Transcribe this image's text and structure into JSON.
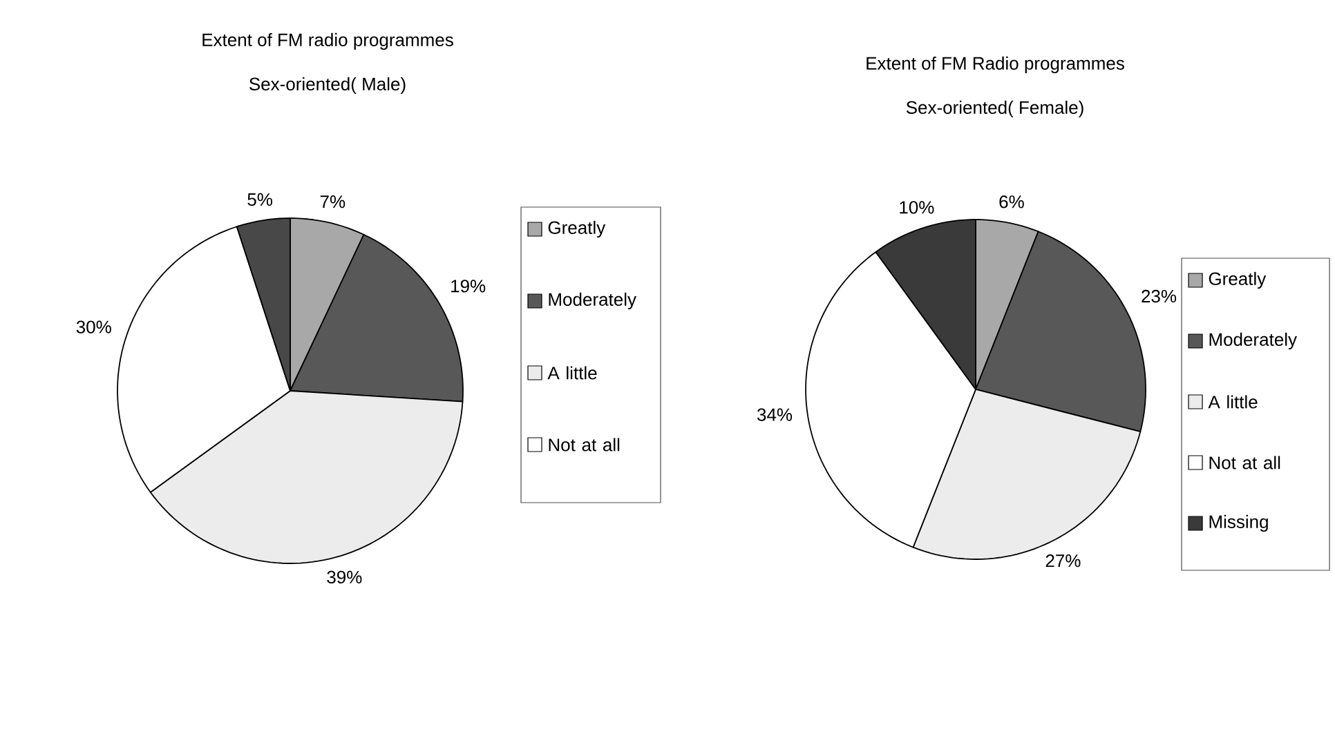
{
  "chart_data": [
    {
      "type": "pie",
      "title": "Extent of FM radio programmes",
      "subtitle": "Sex-oriented( Male)",
      "categories": [
        "Greatly",
        "Moderately",
        "A little",
        "Not at all",
        null
      ],
      "values": [
        7,
        19,
        39,
        30,
        5
      ],
      "colors": [
        "#a8a8a8",
        "#585858",
        "#ececec",
        "#ffffff",
        "#484848"
      ],
      "value_labels": [
        "7%",
        "19%",
        "39%",
        "30%",
        "5%"
      ],
      "legend": "right"
    },
    {
      "type": "pie",
      "title": "Extent of FM Radio programmes",
      "subtitle": "Sex-oriented( Female)",
      "categories": [
        "Greatly",
        "Moderately",
        "A little",
        "Not at all",
        "Missing"
      ],
      "values": [
        6,
        23,
        27,
        34,
        10
      ],
      "colors": [
        "#a8a8a8",
        "#585858",
        "#ececec",
        "#ffffff",
        "#3a3a3a"
      ],
      "value_labels": [
        "6%",
        "23%",
        "27%",
        "34%",
        "10%"
      ],
      "legend": "right"
    }
  ]
}
